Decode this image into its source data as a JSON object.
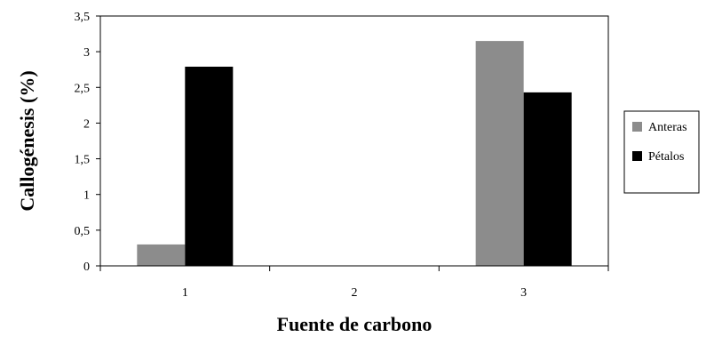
{
  "chart_data": {
    "type": "bar",
    "categories": [
      "1",
      "2",
      "3"
    ],
    "series": [
      {
        "name": "Anteras",
        "values": [
          0.3,
          0,
          3.15
        ],
        "color": "#8c8c8c"
      },
      {
        "name": "Pétalos",
        "values": [
          2.79,
          0,
          2.43
        ],
        "color": "#000000"
      }
    ],
    "xlabel": "Fuente de carbono",
    "ylabel": "Callogénesis (%)",
    "ylim": [
      0,
      3.5
    ],
    "yticks": [
      "0",
      "0,5",
      "1",
      "1,5",
      "2",
      "2,5",
      "3",
      "3,5"
    ],
    "grid": false,
    "legend_position": "right"
  }
}
